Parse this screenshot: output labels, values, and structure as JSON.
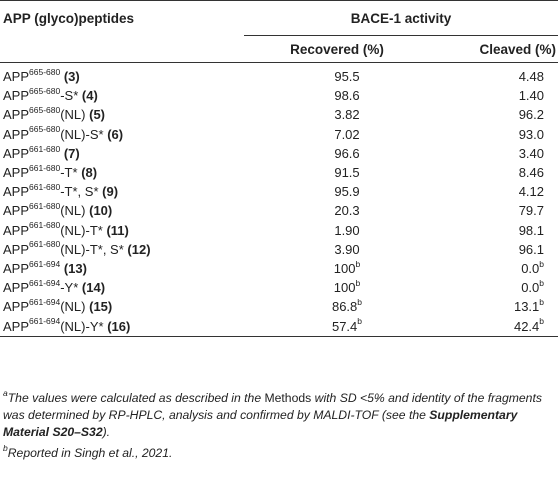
{
  "header": {
    "col1": "APP (glyco)peptides",
    "group": "BACE-1 activity",
    "recovered": "Recovered (%)",
    "cleaved": "Cleaved (%)"
  },
  "rows": [
    {
      "base": "APP",
      "sup": "665-680",
      "suffix": "",
      "num": "(3)",
      "rec": "95.5",
      "rec_sup": "",
      "clv": "4.48",
      "clv_sup": ""
    },
    {
      "base": "APP",
      "sup": "665-680",
      "suffix": "-S*",
      "num": "(4)",
      "rec": "98.6",
      "rec_sup": "",
      "clv": "1.40",
      "clv_sup": ""
    },
    {
      "base": "APP",
      "sup": "665-680",
      "suffix": "(NL)",
      "num": "(5)",
      "rec": "3.82",
      "rec_sup": "",
      "clv": "96.2",
      "clv_sup": ""
    },
    {
      "base": "APP",
      "sup": "665-680",
      "suffix": "(NL)-S*",
      "num": "(6)",
      "rec": "7.02",
      "rec_sup": "",
      "clv": "93.0",
      "clv_sup": ""
    },
    {
      "base": "APP",
      "sup": "661-680",
      "suffix": "",
      "num": "(7)",
      "rec": "96.6",
      "rec_sup": "",
      "clv": "3.40",
      "clv_sup": ""
    },
    {
      "base": "APP",
      "sup": "661-680",
      "suffix": "-T*",
      "num": "(8)",
      "rec": "91.5",
      "rec_sup": "",
      "clv": "8.46",
      "clv_sup": ""
    },
    {
      "base": "APP",
      "sup": "661-680",
      "suffix": "-T*, S*",
      "num": "(9)",
      "rec": "95.9",
      "rec_sup": "",
      "clv": "4.12",
      "clv_sup": ""
    },
    {
      "base": "APP",
      "sup": "661-680",
      "suffix": "(NL)",
      "num": "(10)",
      "rec": "20.3",
      "rec_sup": "",
      "clv": "79.7",
      "clv_sup": ""
    },
    {
      "base": "APP",
      "sup": "661-680",
      "suffix": "(NL)-T*",
      "num": "(11)",
      "rec": "1.90",
      "rec_sup": "",
      "clv": "98.1",
      "clv_sup": ""
    },
    {
      "base": "APP",
      "sup": "661-680",
      "suffix": "(NL)-T*, S*",
      "num": "(12)",
      "rec": "3.90",
      "rec_sup": "",
      "clv": "96.1",
      "clv_sup": ""
    },
    {
      "base": "APP",
      "sup": "661-694",
      "suffix": "",
      "num": "(13)",
      "rec": "100",
      "rec_sup": "b",
      "clv": "0.0",
      "clv_sup": "b"
    },
    {
      "base": "APP",
      "sup": "661-694",
      "suffix": "-Y*",
      "num": "(14)",
      "rec": "100",
      "rec_sup": "b",
      "clv": "0.0",
      "clv_sup": "b"
    },
    {
      "base": "APP",
      "sup": "661-694",
      "suffix": "(NL)",
      "num": "(15)",
      "rec": "86.8",
      "rec_sup": "b",
      "clv": "13.1",
      "clv_sup": "b"
    },
    {
      "base": "APP",
      "sup": "661-694",
      "suffix": "(NL)-Y*",
      "num": "(16)",
      "rec": "57.4",
      "rec_sup": "b",
      "clv": "42.4",
      "clv_sup": "b"
    }
  ],
  "notes": {
    "a_marker": "a",
    "a_part1": "The values were calculated as described in the",
    "a_methods": " Methods ",
    "a_part2": "with SD <5% and identity of the fragments was determined by RP-HPLC, analysis and confirmed by MALDI-TOF (see the ",
    "a_supp": "Supplementary Material S20–S32",
    "a_end": ").",
    "b_marker": "b",
    "b_text": "Reported in Singh et al., 2021."
  }
}
